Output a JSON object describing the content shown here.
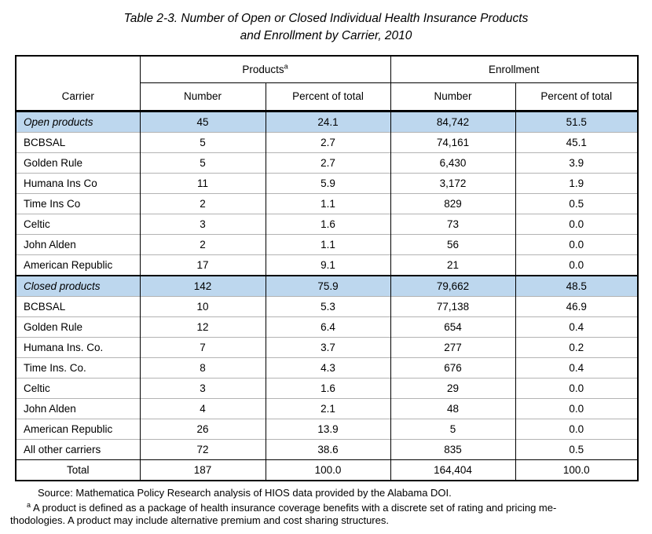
{
  "title": {
    "line1": "Table 2-3. Number of Open or Closed Individual Health Insurance Products",
    "line2": "and Enrollment by Carrier, 2010"
  },
  "table": {
    "col_groups": [
      {
        "label": "Products",
        "superscript": "a"
      },
      {
        "label": "Enrollment",
        "superscript": ""
      }
    ],
    "columns": [
      "Carrier",
      "Number",
      "Percent of total",
      "Number",
      "Percent of total"
    ],
    "rows": [
      {
        "carrier": "Open products",
        "type": "section",
        "values": [
          "45",
          "24.1",
          "84,742",
          "51.5"
        ]
      },
      {
        "carrier": "BCBSAL",
        "type": "data",
        "values": [
          "5",
          "2.7",
          "74,161",
          "45.1"
        ]
      },
      {
        "carrier": "Golden Rule",
        "type": "data",
        "values": [
          "5",
          "2.7",
          "6,430",
          "3.9"
        ]
      },
      {
        "carrier": "Humana Ins Co",
        "type": "data",
        "values": [
          "11",
          "5.9",
          "3,172",
          "1.9"
        ]
      },
      {
        "carrier": "Time Ins Co",
        "type": "data",
        "values": [
          "2",
          "1.1",
          "829",
          "0.5"
        ]
      },
      {
        "carrier": "Celtic",
        "type": "data",
        "values": [
          "3",
          "1.6",
          "73",
          "0.0"
        ]
      },
      {
        "carrier": "John Alden",
        "type": "data",
        "values": [
          "2",
          "1.1",
          "56",
          "0.0"
        ]
      },
      {
        "carrier": "American Republic",
        "type": "data",
        "values": [
          "17",
          "9.1",
          "21",
          "0.0"
        ]
      },
      {
        "carrier": "Closed products",
        "type": "section",
        "values": [
          "142",
          "75.9",
          "79,662",
          "48.5"
        ]
      },
      {
        "carrier": "BCBSAL",
        "type": "data",
        "values": [
          "10",
          "5.3",
          "77,138",
          "46.9"
        ]
      },
      {
        "carrier": "Golden Rule",
        "type": "data",
        "values": [
          "12",
          "6.4",
          "654",
          "0.4"
        ]
      },
      {
        "carrier": "Humana Ins. Co.",
        "type": "data",
        "values": [
          "7",
          "3.7",
          "277",
          "0.2"
        ]
      },
      {
        "carrier": "Time Ins. Co.",
        "type": "data",
        "values": [
          "8",
          "4.3",
          "676",
          "0.4"
        ]
      },
      {
        "carrier": "Celtic",
        "type": "data",
        "values": [
          "3",
          "1.6",
          "29",
          "0.0"
        ]
      },
      {
        "carrier": "John Alden",
        "type": "data",
        "values": [
          "4",
          "2.1",
          "48",
          "0.0"
        ]
      },
      {
        "carrier": "American Republic",
        "type": "data",
        "values": [
          "26",
          "13.9",
          "5",
          "0.0"
        ]
      },
      {
        "carrier": "All other carriers",
        "type": "data",
        "values": [
          "72",
          "38.6",
          "835",
          "0.5"
        ]
      },
      {
        "carrier": "Total",
        "type": "total",
        "values": [
          "187",
          "100.0",
          "164,404",
          "100.0"
        ]
      }
    ]
  },
  "notes": {
    "source": "Source: Mathematica Policy Research analysis of HIOS data provided by the Alabama DOI.",
    "footnote_marker": "a",
    "footnote_text": "A product is defined as a package of health insurance coverage benefits with a discrete set of rating and pricing me-\nthodologies. A product may include alternative premium and cost sharing structures."
  },
  "colors": {
    "section_row_bg": "#bdd7ee",
    "grid_line": "#b3b3b3",
    "border": "#000000"
  }
}
